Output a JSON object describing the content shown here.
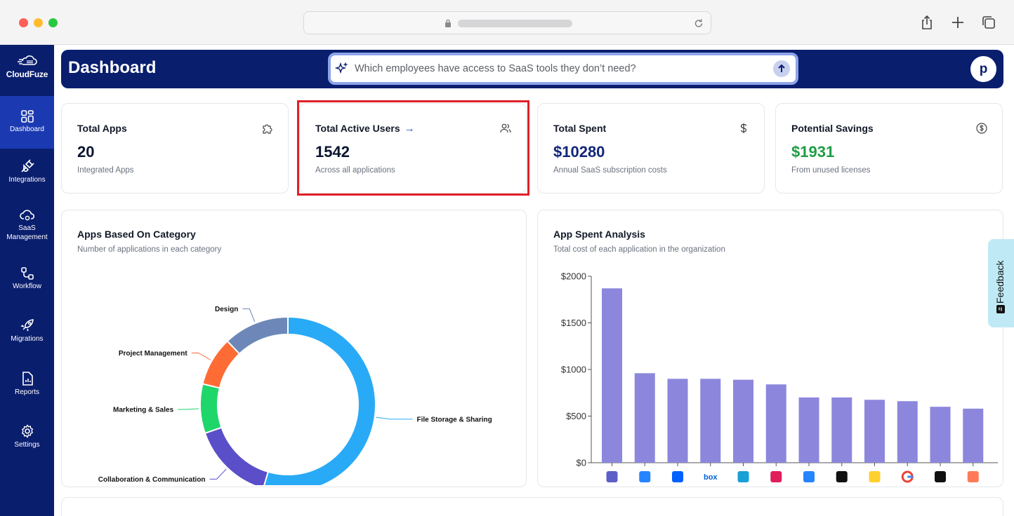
{
  "app": {
    "logo_text": "CloudFuze"
  },
  "sidebar": {
    "items": [
      {
        "label": "Dashboard",
        "icon": "dashboard-icon",
        "active": true
      },
      {
        "label": "Integrations",
        "icon": "plug-icon",
        "active": false
      },
      {
        "label": "SaaS Management",
        "icon": "cloud-gear-icon",
        "active": false
      },
      {
        "label": "Workflow",
        "icon": "workflow-icon",
        "active": false
      },
      {
        "label": "Migrations",
        "icon": "rocket-icon",
        "active": false
      },
      {
        "label": "Reports",
        "icon": "report-icon",
        "active": false
      },
      {
        "label": "Settings",
        "icon": "gear-icon",
        "active": false
      }
    ]
  },
  "header": {
    "title": "Dashboard",
    "search_placeholder": "Which employees have access to SaaS tools they don’t need?",
    "avatar_initial": "p"
  },
  "stats": [
    {
      "title": "Total Apps",
      "value": "20",
      "sub": "Integrated Apps",
      "icon": "puzzle-icon"
    },
    {
      "title": "Total Active Users",
      "arrow": "→",
      "value": "1542",
      "sub": "Across all applications",
      "icon": "users-icon"
    },
    {
      "title": "Total Spent",
      "value": "$10280",
      "sub": "Annual SaaS subscription costs",
      "icon": "dollar-icon"
    },
    {
      "title": "Potential Savings",
      "value": "$1931",
      "sub": "From unused licenses",
      "icon": "dollar-circle-icon"
    }
  ],
  "category_chart": {
    "title": "Apps Based On Category",
    "subtitle": "Number of applications in each category"
  },
  "spent_chart": {
    "title": "App Spent Analysis",
    "subtitle": "Total cost of each application in the organization"
  },
  "feedback": {
    "label": "Feedback"
  },
  "colors": {
    "sidebar": "#0a1e6e",
    "accent_active": "#1b3ab2",
    "savings_green": "#1e9e45",
    "bar_purple": "#8c87dc"
  },
  "chart_data": [
    {
      "type": "pie",
      "title": "Apps Based On Category",
      "subtitle": "Number of applications in each category",
      "categories": [
        "File Storage & Sharing",
        "Collaboration & Communication",
        "Marketing & Sales",
        "Project Management",
        "Design"
      ],
      "values": [
        9,
        2.5,
        1.5,
        1.5,
        2
      ],
      "colors": [
        "#29aaf6",
        "#5a4fc9",
        "#1fd66b",
        "#fe6b35",
        "#6d88b8"
      ],
      "donut": true
    },
    {
      "type": "bar",
      "title": "App Spent Analysis",
      "subtitle": "Total cost of each application in the organization",
      "categories": [
        "Microsoft Teams",
        "Jira",
        "Dropbox",
        "Box",
        "Zoho",
        "Slack",
        "Bitbucket",
        "Monday",
        "Miro",
        "Google",
        "Cursor",
        "HubSpot"
      ],
      "icons": [
        "teams-icon",
        "jira-icon",
        "dropbox-icon",
        "box-icon",
        "cube-icon",
        "slack-icon",
        "bitbucket-icon",
        "monday-icon",
        "miro-icon",
        "google-icon",
        "cursor-icon",
        "hubspot-icon"
      ],
      "values": [
        1870,
        960,
        900,
        900,
        890,
        840,
        700,
        700,
        675,
        660,
        600,
        580
      ],
      "ylim": [
        0,
        2000
      ],
      "yticks": [
        0,
        500,
        1000,
        1500,
        2000
      ],
      "ytick_labels": [
        "$0",
        "$500",
        "$1000",
        "$1500",
        "$2000"
      ],
      "color": "#8c87dc"
    }
  ]
}
